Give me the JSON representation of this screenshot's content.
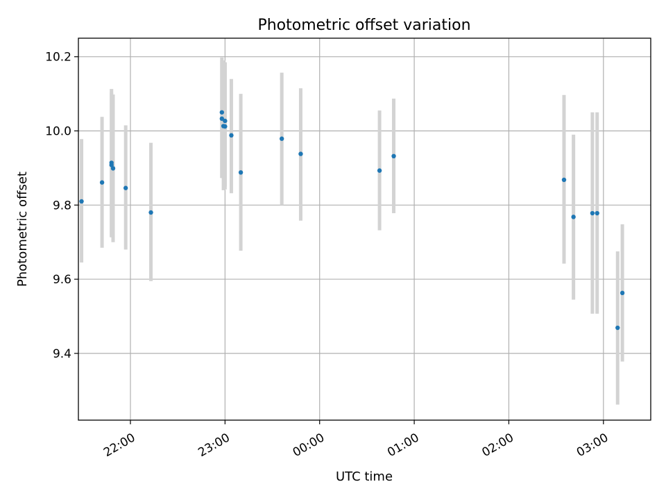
{
  "chart_data": {
    "type": "scatter",
    "title": "Photometric offset variation",
    "xlabel": "UTC time",
    "ylabel": "Photometric offset",
    "x_ticks": [
      "22:00",
      "23:00",
      "00:00",
      "01:00",
      "02:00",
      "03:00"
    ],
    "y_ticks": [
      "9.4",
      "9.6",
      "9.8",
      "10.0",
      "10.2"
    ],
    "xlim": [
      "21:27",
      "03:30"
    ],
    "ylim": [
      9.22,
      10.25
    ],
    "grid": true,
    "colors": {
      "point": "#1f77b4",
      "errorbar": "#d3d3d3",
      "grid": "#b0b0b0"
    },
    "points": [
      {
        "x": "21:29",
        "y": 9.81,
        "yerr": [
          9.645,
          9.978
        ]
      },
      {
        "x": "21:42",
        "y": 9.861,
        "yerr": [
          9.685,
          10.038
        ]
      },
      {
        "x": "21:48",
        "y": 9.914,
        "yerr": [
          9.715,
          10.113
        ]
      },
      {
        "x": "21:48",
        "y": 9.908,
        "yerr": [
          9.713,
          10.103
        ]
      },
      {
        "x": "21:49",
        "y": 9.899,
        "yerr": [
          9.7,
          10.098
        ]
      },
      {
        "x": "21:57",
        "y": 9.846,
        "yerr": [
          9.68,
          10.015
        ]
      },
      {
        "x": "22:13",
        "y": 9.78,
        "yerr": [
          9.595,
          9.968
        ]
      },
      {
        "x": "22:58",
        "y": 10.05,
        "yerr": [
          9.873,
          10.198
        ]
      },
      {
        "x": "22:58",
        "y": 10.033,
        "yerr": [
          9.873,
          10.19
        ]
      },
      {
        "x": "22:59",
        "y": 10.013,
        "yerr": [
          9.84,
          10.19
        ]
      },
      {
        "x": "23:00",
        "y": 10.027,
        "yerr": [
          9.842,
          10.185
        ]
      },
      {
        "x": "23:00",
        "y": 10.012,
        "yerr": [
          9.85,
          10.185
        ]
      },
      {
        "x": "23:04",
        "y": 9.988,
        "yerr": [
          9.832,
          10.14
        ]
      },
      {
        "x": "23:10",
        "y": 9.888,
        "yerr": [
          9.677,
          10.1
        ]
      },
      {
        "x": "23:36",
        "y": 9.979,
        "yerr": [
          9.8,
          10.157
        ]
      },
      {
        "x": "23:48",
        "y": 9.938,
        "yerr": [
          9.758,
          10.115
        ]
      },
      {
        "x": "00:38",
        "y": 9.893,
        "yerr": [
          9.732,
          10.055
        ]
      },
      {
        "x": "00:47",
        "y": 9.932,
        "yerr": [
          9.778,
          10.087
        ]
      },
      {
        "x": "02:35",
        "y": 9.868,
        "yerr": [
          9.642,
          10.097
        ]
      },
      {
        "x": "02:41",
        "y": 9.768,
        "yerr": [
          9.545,
          9.99
        ]
      },
      {
        "x": "02:53",
        "y": 9.778,
        "yerr": [
          9.507,
          10.05
        ]
      },
      {
        "x": "02:56",
        "y": 9.778,
        "yerr": [
          9.507,
          10.05
        ]
      },
      {
        "x": "03:09",
        "y": 9.469,
        "yerr": [
          9.262,
          9.675
        ]
      },
      {
        "x": "03:12",
        "y": 9.563,
        "yerr": [
          9.378,
          9.748
        ]
      }
    ]
  }
}
